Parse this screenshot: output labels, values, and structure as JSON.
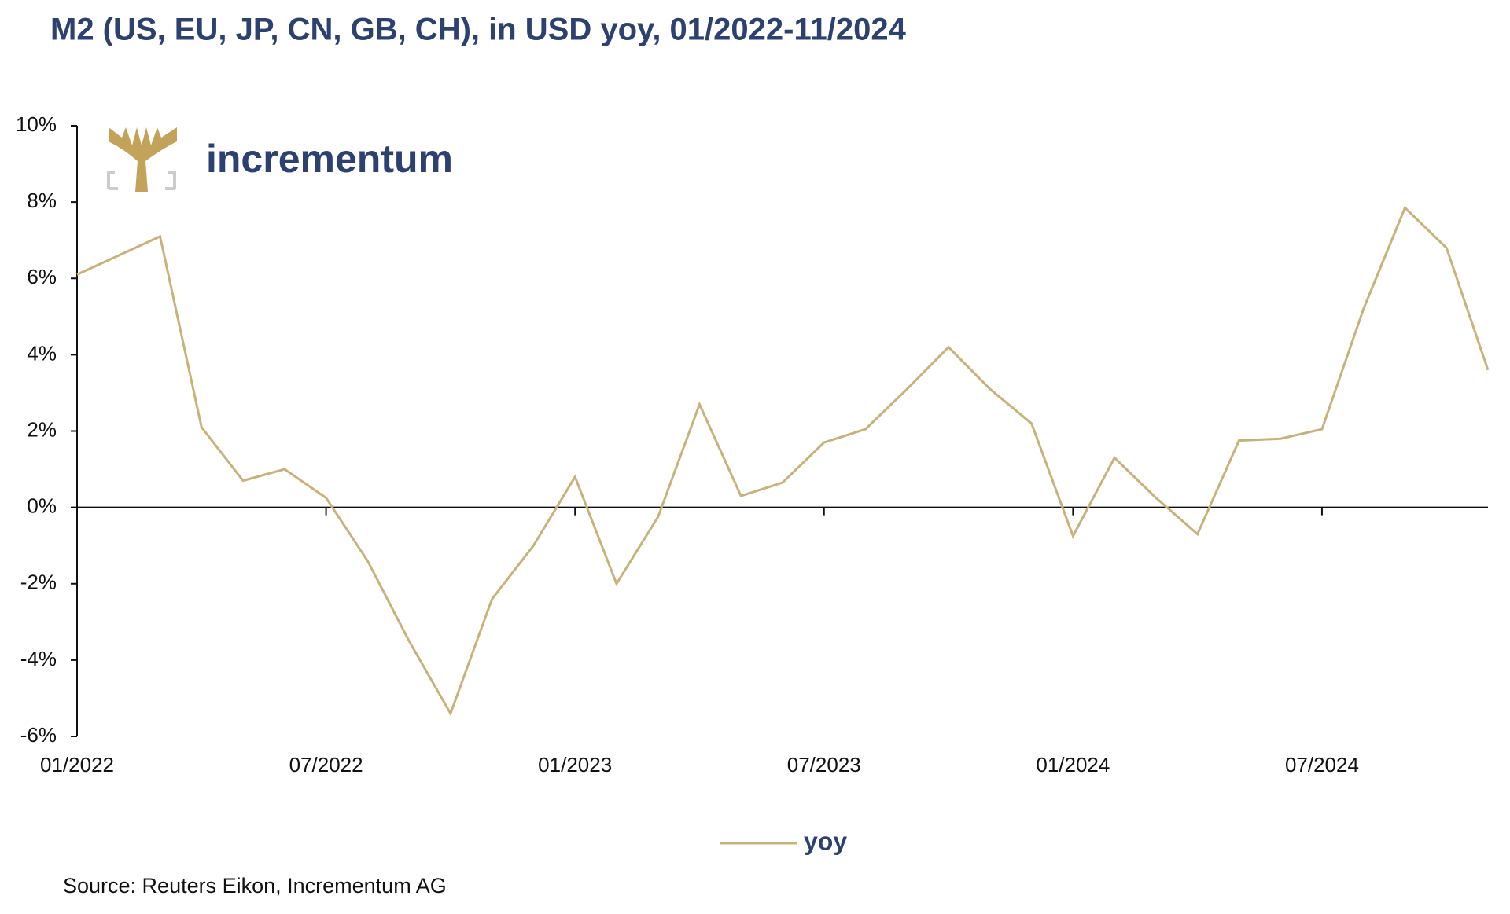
{
  "chart_data": {
    "type": "line",
    "title": "M2 (US, EU, JP, CN, GB, CH), in USD yoy, 01/2022-11/2024",
    "logo_text": "incrementum",
    "source": "Source: Reuters Eikon, Incrementum AG",
    "categories": [
      "01/2022",
      null,
      null,
      null,
      null,
      null,
      "07/2022",
      null,
      null,
      null,
      null,
      null,
      "01/2023",
      null,
      null,
      null,
      null,
      null,
      "07/2023",
      null,
      null,
      null,
      null,
      null,
      "01/2024",
      null,
      null,
      null,
      null,
      null,
      "07/2024",
      null,
      null,
      null,
      null
    ],
    "series": [
      {
        "name": "yoy",
        "color": "#c9b27a",
        "values": [
          6.1,
          6.6,
          7.1,
          2.1,
          0.7,
          1.0,
          0.25,
          -1.4,
          -3.5,
          -5.4,
          -2.4,
          -1.0,
          0.8,
          -2.0,
          -0.25,
          2.7,
          0.3,
          0.65,
          1.7,
          2.05,
          3.1,
          4.2,
          3.1,
          2.2,
          -0.75,
          1.3,
          0.25,
          -0.7,
          1.75,
          1.8,
          2.05,
          5.2,
          7.85,
          6.8,
          3.6
        ]
      }
    ],
    "ylim": [
      -6,
      10
    ],
    "yticks": [
      {
        "value": -6,
        "label": "-6%"
      },
      {
        "value": -4,
        "label": "-4%"
      },
      {
        "value": -2,
        "label": "-2%"
      },
      {
        "value": 0,
        "label": "0%"
      },
      {
        "value": 2,
        "label": "2%"
      },
      {
        "value": 4,
        "label": "4%"
      },
      {
        "value": 6,
        "label": "6%"
      },
      {
        "value": 8,
        "label": "8%"
      },
      {
        "value": 10,
        "label": "10%"
      }
    ],
    "legend": "bottom"
  }
}
